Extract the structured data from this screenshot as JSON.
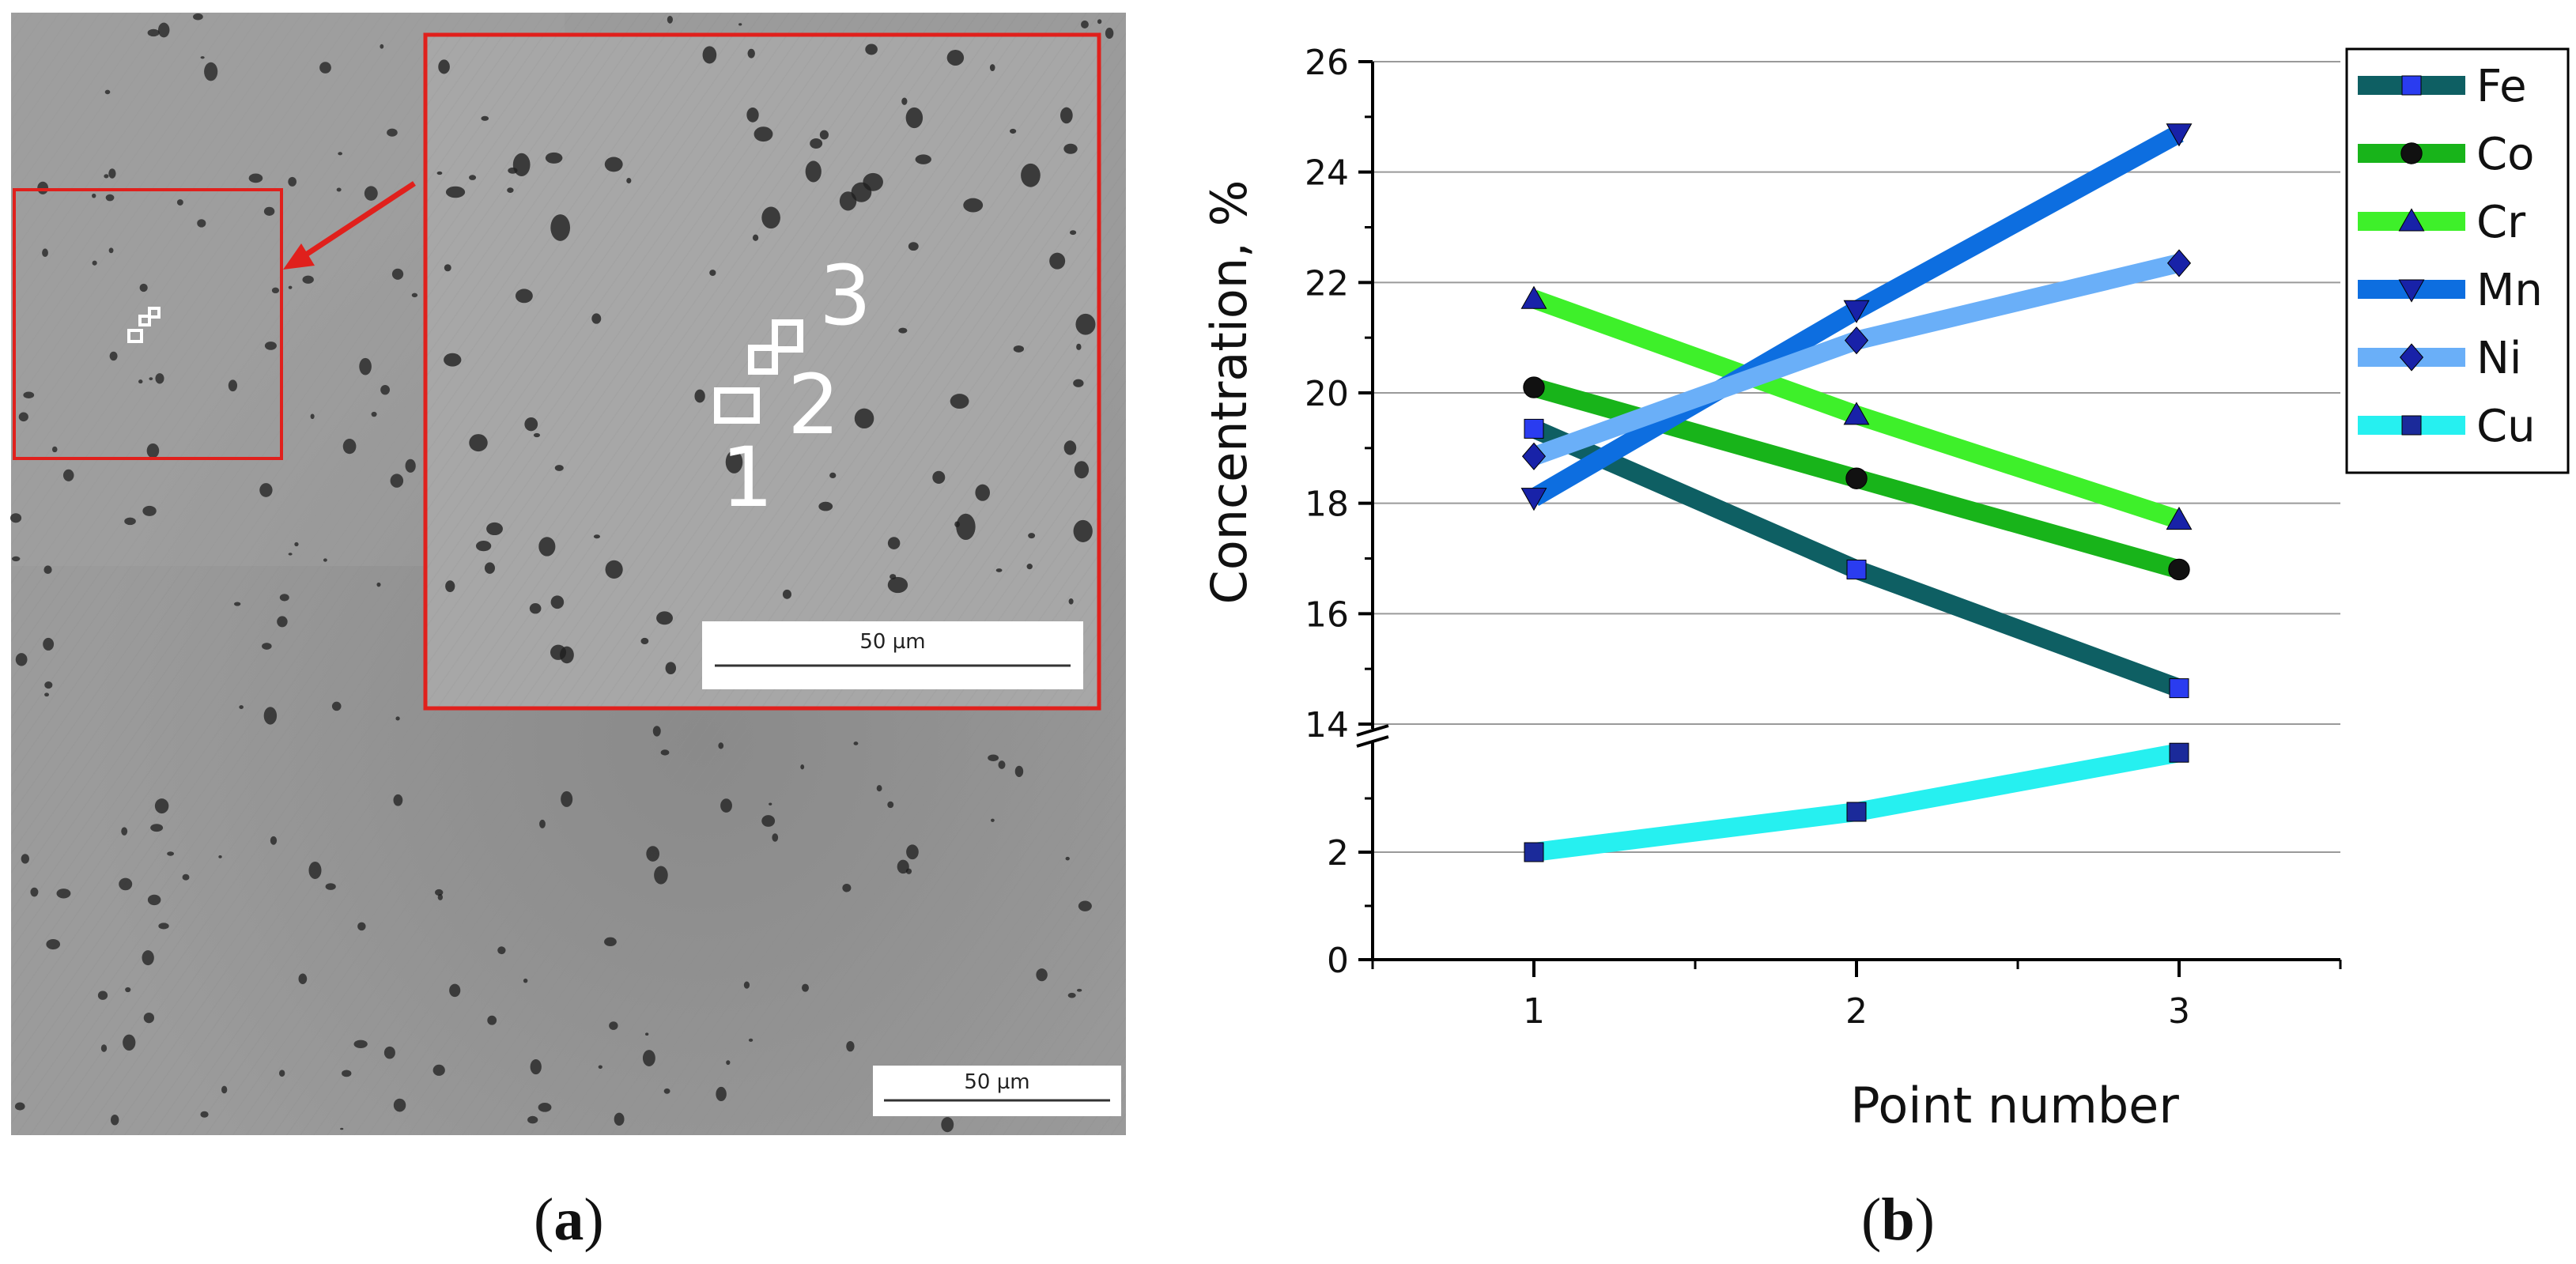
{
  "panel_a": {
    "scale_bar_main": "50 µm",
    "scale_bar_inset": "50 µm",
    "point_labels": [
      "1",
      "2",
      "3"
    ],
    "colors": {
      "frame": "#e0201c",
      "arrow": "#e0201c",
      "background": "#9a9a9a",
      "inset_bg": "#a8a8a8"
    }
  },
  "captions": {
    "a": "a",
    "b": "b"
  },
  "chart_data": {
    "type": "line",
    "xlabel": "Point number",
    "ylabel": "Concentration, %",
    "x": [
      1,
      2,
      3
    ],
    "xticks": [
      "1",
      "2",
      "3"
    ],
    "xlim": [
      0.5,
      3.5
    ],
    "axis_break": {
      "lower_range": [
        0,
        4
      ],
      "upper_range": [
        14,
        26
      ]
    },
    "yticks_lower": [
      "0",
      "2"
    ],
    "yticks_upper": [
      "14",
      "16",
      "18",
      "20",
      "22",
      "24",
      "26"
    ],
    "grid": true,
    "legend_position": "top-right",
    "series": [
      {
        "name": "Fe",
        "values": [
          19.35,
          16.8,
          14.65
        ],
        "color": "#0e5f63",
        "marker": "square",
        "marker_color": "#2a3cf0"
      },
      {
        "name": "Co",
        "values": [
          20.1,
          18.45,
          16.8
        ],
        "color": "#18b41a",
        "marker": "circle",
        "marker_color": "#111111"
      },
      {
        "name": "Cr",
        "values": [
          21.7,
          19.6,
          17.7
        ],
        "color": "#3ef02a",
        "marker": "triangle-up",
        "marker_color": "#1822a8"
      },
      {
        "name": "Mn",
        "values": [
          18.1,
          21.5,
          24.7
        ],
        "color": "#0d6ee0",
        "marker": "triangle-down",
        "marker_color": "#1822a8"
      },
      {
        "name": "Ni",
        "values": [
          18.85,
          20.95,
          22.35
        ],
        "color": "#6aaff8",
        "marker": "diamond",
        "marker_color": "#1822a8"
      },
      {
        "name": "Cu",
        "values": [
          2.0,
          2.75,
          3.85
        ],
        "color": "#26f0f0",
        "marker": "square",
        "marker_color": "#1b2a9a"
      }
    ]
  }
}
